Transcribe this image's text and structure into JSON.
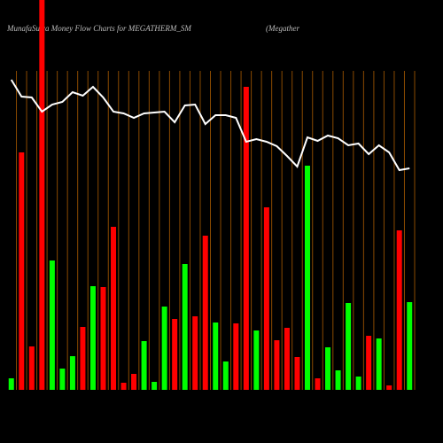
{
  "chart_data": {
    "type": "bar-line",
    "title": "MunafaSutra  Money Flow  Charts for MEGATHERM_SM",
    "subtitle": "(Megather",
    "categories": [
      null,
      null,
      null,
      null,
      null,
      null,
      null,
      null,
      null,
      null,
      null,
      null,
      null,
      null,
      null,
      null,
      null,
      null,
      null,
      null,
      null,
      null,
      null,
      null,
      null,
      null,
      null,
      null,
      null,
      null,
      null,
      null,
      null,
      null,
      null,
      null,
      null,
      null,
      null,
      null
    ],
    "ylim": [
      0,
      360
    ],
    "bars": {
      "values": [
        13,
        268,
        49,
        440,
        146,
        24,
        38,
        71,
        117,
        116,
        184,
        8,
        18,
        55,
        9,
        94,
        80,
        142,
        83,
        174,
        76,
        32,
        75,
        342,
        67,
        206,
        56,
        70,
        37,
        253,
        13,
        48,
        22,
        98,
        15,
        61,
        58,
        5,
        180,
        99
      ],
      "colors": [
        "#00ff00",
        "#ff0000",
        "#ff0000",
        "#ff0000",
        "#00ff00",
        "#00ff00",
        "#00ff00",
        "#ff0000",
        "#00ff00",
        "#ff0000",
        "#ff0000",
        "#ff0000",
        "#ff0000",
        "#00ff00",
        "#00ff00",
        "#00ff00",
        "#ff0000",
        "#00ff00",
        "#ff0000",
        "#ff0000",
        "#00ff00",
        "#00ff00",
        "#ff0000",
        "#ff0000",
        "#00ff00",
        "#ff0000",
        "#ff0000",
        "#ff0000",
        "#ff0000",
        "#00ff00",
        "#ff0000",
        "#00ff00",
        "#00ff00",
        "#00ff00",
        "#00ff00",
        "#ff0000",
        "#00ff00",
        "#ff0000",
        "#ff0000",
        "#00ff00"
      ]
    },
    "line": {
      "color": "#ffffff",
      "values": [
        350,
        331,
        330,
        314,
        322,
        325,
        336,
        332,
        342,
        330,
        314,
        312,
        307,
        312,
        313,
        314,
        302,
        321,
        322,
        300,
        310,
        310,
        307,
        280,
        283,
        280,
        275,
        264,
        252,
        285,
        281,
        287,
        284,
        276,
        278,
        266,
        276,
        268,
        248,
        250
      ]
    },
    "grid_color": "#8a4a00"
  }
}
